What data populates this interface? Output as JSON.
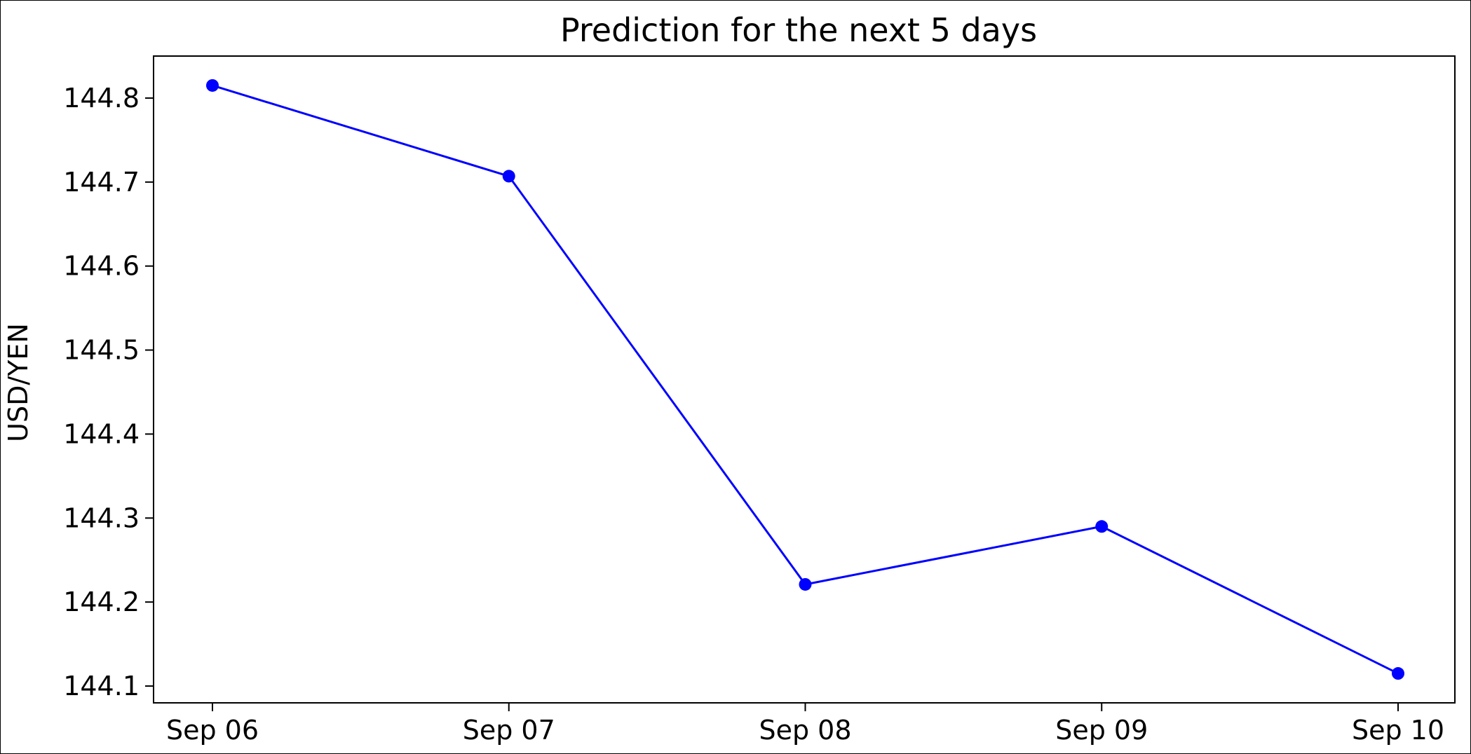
{
  "chart_data": {
    "type": "line",
    "title": "Prediction for the next 5 days",
    "xlabel": "",
    "ylabel": "USD/YEN",
    "categories": [
      "Sep 06",
      "Sep 07",
      "Sep 08",
      "Sep 09",
      "Sep 10"
    ],
    "series": [
      {
        "values": [
          144.815,
          144.707,
          144.221,
          144.29,
          144.115
        ],
        "color": "#0000ff",
        "marker": "circle"
      }
    ],
    "y_ticks": [
      "144.1",
      "144.2",
      "144.3",
      "144.4",
      "144.5",
      "144.6",
      "144.7",
      "144.8"
    ],
    "ylim": [
      144.08,
      144.85
    ],
    "grid": false,
    "legend": "none"
  }
}
